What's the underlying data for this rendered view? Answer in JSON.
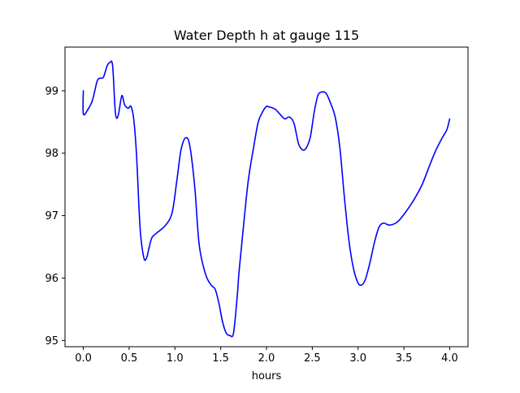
{
  "chart_data": {
    "type": "line",
    "title": "Water Depth h at gauge 115",
    "xlabel": "hours",
    "ylabel": "",
    "xlim": [
      -0.2,
      4.2
    ],
    "ylim": [
      94.9,
      99.7
    ],
    "xticks": [
      0.0,
      0.5,
      1.0,
      1.5,
      2.0,
      2.5,
      3.0,
      3.5,
      4.0
    ],
    "xtick_labels": [
      "0.0",
      "0.5",
      "1.0",
      "1.5",
      "2.0",
      "2.5",
      "3.0",
      "3.5",
      "4.0"
    ],
    "yticks": [
      95,
      96,
      97,
      98,
      99
    ],
    "ytick_labels": [
      "95",
      "96",
      "97",
      "98",
      "99"
    ],
    "grid": false,
    "series": [
      {
        "color": "#0000ff",
        "x": [
          0.0,
          0.0,
          0.05,
          0.1,
          0.15,
          0.18,
          0.22,
          0.26,
          0.29,
          0.32,
          0.35,
          0.38,
          0.42,
          0.45,
          0.49,
          0.52,
          0.55,
          0.58,
          0.62,
          0.66,
          0.69,
          0.72,
          0.75,
          0.8,
          0.9,
          0.97,
          1.02,
          1.06,
          1.09,
          1.12,
          1.15,
          1.18,
          1.22,
          1.26,
          1.3,
          1.35,
          1.4,
          1.44,
          1.48,
          1.52,
          1.56,
          1.6,
          1.64,
          1.68,
          1.7,
          1.74,
          1.8,
          1.86,
          1.91,
          1.96,
          2.0,
          2.03,
          2.06,
          2.1,
          2.15,
          2.2,
          2.25,
          2.3,
          2.35,
          2.4,
          2.44,
          2.48,
          2.52,
          2.56,
          2.6,
          2.65,
          2.7,
          2.75,
          2.8,
          2.85,
          2.9,
          2.95,
          3.0,
          3.04,
          3.08,
          3.13,
          3.18,
          3.23,
          3.28,
          3.33,
          3.38,
          3.43,
          3.48,
          3.55,
          3.62,
          3.7,
          3.78,
          3.85,
          3.92,
          3.97,
          4.0
        ],
        "y": [
          99.0,
          98.63,
          98.7,
          98.85,
          99.15,
          99.2,
          99.22,
          99.4,
          99.45,
          99.4,
          98.65,
          98.6,
          98.92,
          98.78,
          98.72,
          98.75,
          98.55,
          98.0,
          96.8,
          96.33,
          96.32,
          96.5,
          96.65,
          96.72,
          96.85,
          97.05,
          97.55,
          98.0,
          98.18,
          98.25,
          98.2,
          97.95,
          97.4,
          96.6,
          96.25,
          96.0,
          95.88,
          95.82,
          95.6,
          95.3,
          95.12,
          95.08,
          95.12,
          95.7,
          96.1,
          96.7,
          97.55,
          98.1,
          98.5,
          98.67,
          98.75,
          98.74,
          98.73,
          98.7,
          98.62,
          98.55,
          98.58,
          98.48,
          98.15,
          98.05,
          98.1,
          98.27,
          98.65,
          98.92,
          98.98,
          98.96,
          98.8,
          98.58,
          98.1,
          97.3,
          96.6,
          96.15,
          95.92,
          95.89,
          95.98,
          96.25,
          96.58,
          96.82,
          96.88,
          96.85,
          96.86,
          96.9,
          96.98,
          97.12,
          97.28,
          97.5,
          97.8,
          98.05,
          98.25,
          98.38,
          98.55
        ]
      }
    ]
  }
}
